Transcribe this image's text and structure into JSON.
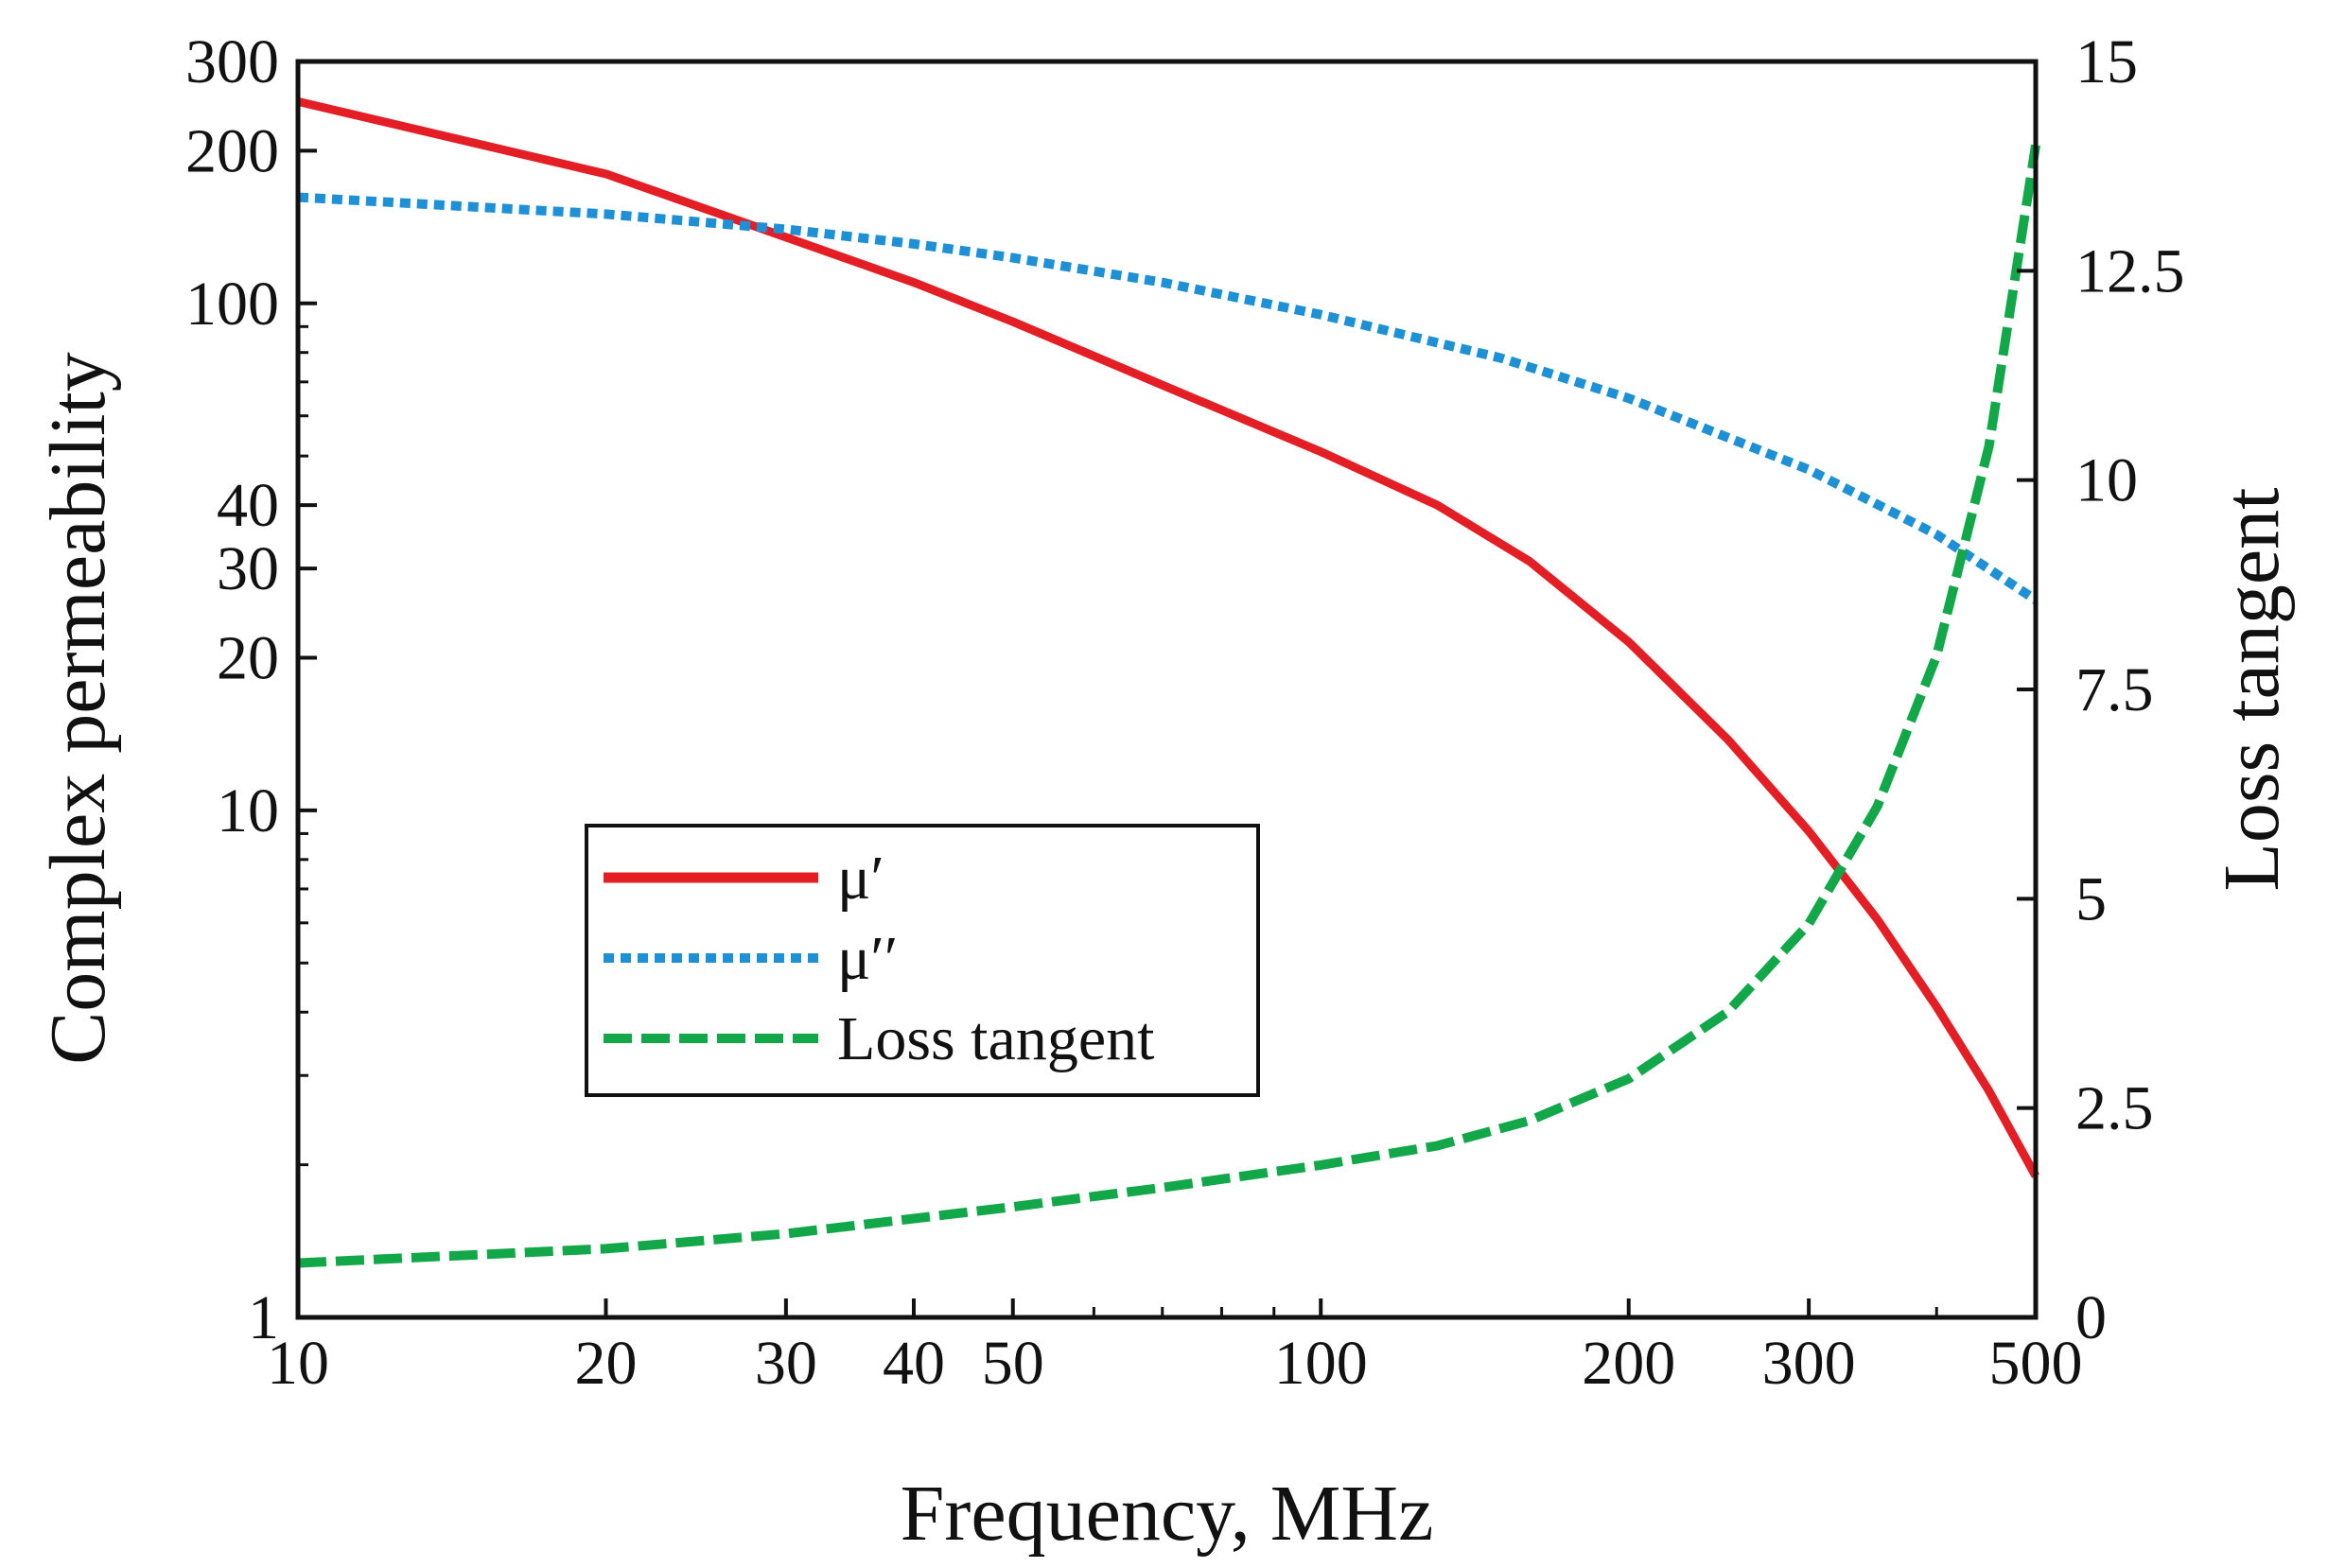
{
  "chart_data": {
    "type": "line",
    "title": "",
    "xlabel": "Frequency, MHz",
    "ylabel_left": "Complex permeability",
    "ylabel_right": "Loss tangent",
    "x_scale": "log",
    "y_left_scale": "log",
    "y_right_scale": "linear",
    "xlim": [
      10,
      500
    ],
    "ylim_left": [
      1,
      300
    ],
    "ylim_right": [
      0,
      15
    ],
    "grid": false,
    "legend_position": "center-left",
    "x_ticks": [
      {
        "value": 10,
        "label": "10"
      },
      {
        "value": 20,
        "label": "20"
      },
      {
        "value": 30,
        "label": "30"
      },
      {
        "value": 40,
        "label": "40"
      },
      {
        "value": 50,
        "label": "50"
      },
      {
        "value": 100,
        "label": "100"
      },
      {
        "value": 200,
        "label": "200"
      },
      {
        "value": 300,
        "label": "300"
      },
      {
        "value": 500,
        "label": "500"
      }
    ],
    "x_minor_ticks": [
      60,
      70,
      80,
      90,
      400
    ],
    "y_left_ticks": [
      {
        "value": 1,
        "label": "1"
      },
      {
        "value": 10,
        "label": "10"
      },
      {
        "value": 20,
        "label": "20"
      },
      {
        "value": 30,
        "label": "30"
      },
      {
        "value": 40,
        "label": "40"
      },
      {
        "value": 100,
        "label": "100"
      },
      {
        "value": 200,
        "label": "200"
      },
      {
        "value": 300,
        "label": "300"
      }
    ],
    "y_left_minor_ticks": [
      2,
      3,
      4,
      5,
      6,
      7,
      8,
      9,
      50,
      60,
      70,
      80,
      90
    ],
    "y_right_ticks": [
      {
        "value": 0,
        "label": "0"
      },
      {
        "value": 2.5,
        "label": "2.5"
      },
      {
        "value": 5,
        "label": "5"
      },
      {
        "value": 7.5,
        "label": "7.5"
      },
      {
        "value": 10,
        "label": "10"
      },
      {
        "value": 12.5,
        "label": "12.5"
      },
      {
        "value": 15,
        "label": "15"
      }
    ],
    "series": [
      {
        "name": "μ′",
        "axis": "left",
        "style": "solid",
        "color": "#e31e24",
        "x": [
          10,
          20,
          30,
          40,
          50,
          70,
          100,
          130,
          160,
          200,
          250,
          300,
          350,
          400,
          450,
          500
        ],
        "y": [
          250,
          180,
          135,
          110,
          92,
          69,
          51,
          40,
          31,
          21.5,
          13.8,
          9.1,
          6.1,
          4.1,
          2.8,
          1.9
        ]
      },
      {
        "name": "μ″",
        "axis": "left",
        "style": "dotted",
        "color": "#1e90d6",
        "x": [
          10,
          20,
          30,
          40,
          50,
          70,
          100,
          150,
          200,
          300,
          400,
          500
        ],
        "y": [
          162,
          150,
          140,
          131,
          123,
          110,
          95,
          78,
          65,
          47,
          35,
          26
        ]
      },
      {
        "name": "Loss tangent",
        "axis": "right",
        "style": "dashed",
        "color": "#12a84a",
        "x": [
          10,
          20,
          30,
          40,
          50,
          70,
          100,
          130,
          160,
          200,
          250,
          300,
          350,
          400,
          450,
          500
        ],
        "y": [
          0.65,
          0.82,
          1.0,
          1.18,
          1.32,
          1.55,
          1.82,
          2.05,
          2.35,
          2.85,
          3.65,
          4.7,
          6.1,
          7.9,
          10.4,
          14.0
        ]
      }
    ],
    "legend": [
      {
        "label": "μ′",
        "style": "solid",
        "color": "#e31e24"
      },
      {
        "label": "μ′′",
        "style": "dotted",
        "color": "#1e90d6"
      },
      {
        "label": "Loss tangent",
        "style": "dashed",
        "color": "#12a84a"
      }
    ]
  }
}
